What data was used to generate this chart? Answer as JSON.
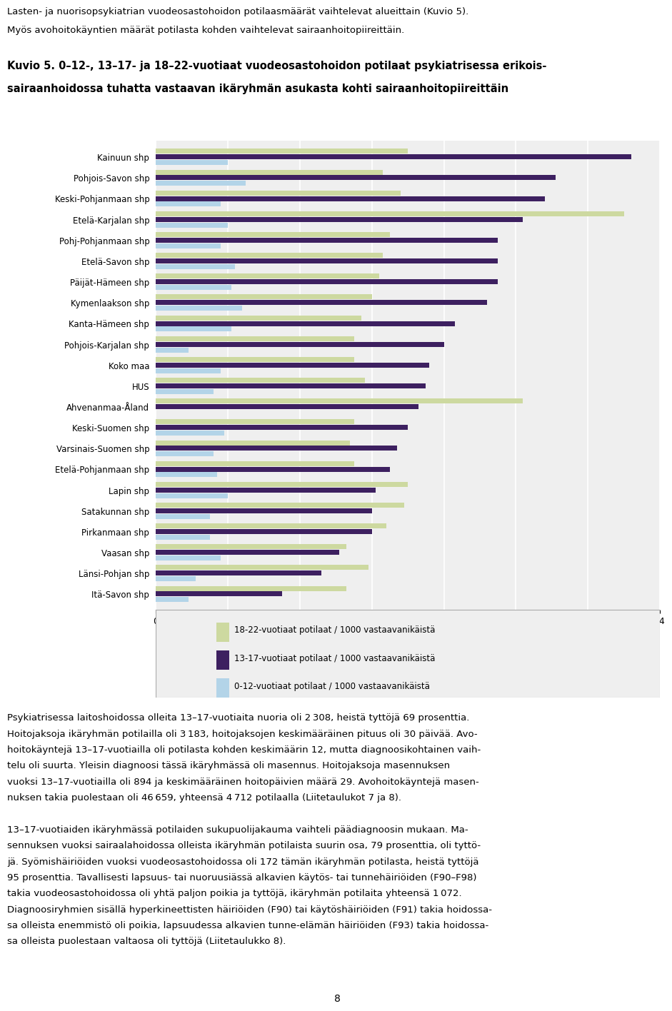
{
  "title": "Kuvio 5. 0–12-, 13–17- ja 18–22-vuotiaat vuodeosastohoidon potilaat psykiatrisessa erikois-\nsairaanhoidossa tuhatta vastaavan ikäryhmän asukasta kohti sairaanhoitopiireittäin",
  "header_line1": "Lasten- ja nuorisopsykiatrian vuodeosastohoidon potilaasmäärät vaihtelevat alueittain (Kuvio 5).",
  "header_line2": "Myös avohoitokäyntien määrät potilasta kohden vaihtelevat sairaanhoitopiireittäin.",
  "categories": [
    "Kainuun shp",
    "Pohjois-Savon shp",
    "Keski-Pohjanmaan shp",
    "Etelä-Karjalan shp",
    "Pohj-Pohjanmaan shp",
    "Etelä-Savon shp",
    "Päijät-Hämeen shp",
    "Kymenlaakson shp",
    "Kanta-Hämeen shp",
    "Pohjois-Karjalan shp",
    "Koko maa",
    "HUS",
    "Ahvenanmaa-Åland",
    "Keski-Suomen shp",
    "Varsinais-Suomen shp",
    "Etelä-Pohjanmaan shp",
    "Lapin shp",
    "Satakunnan shp",
    "Pirkanmaan shp",
    "Vaasan shp",
    "Länsi-Pohjan shp",
    "Itä-Savon shp"
  ],
  "series_18_22": [
    7.0,
    6.3,
    6.8,
    13.0,
    6.5,
    6.3,
    6.2,
    6.0,
    5.7,
    5.5,
    5.5,
    5.8,
    10.2,
    5.5,
    5.4,
    5.5,
    7.0,
    6.9,
    6.4,
    5.3,
    5.9,
    5.3
  ],
  "series_13_17": [
    13.2,
    11.1,
    10.8,
    10.2,
    9.5,
    9.5,
    9.5,
    9.2,
    8.3,
    8.0,
    7.6,
    7.5,
    7.3,
    7.0,
    6.7,
    6.5,
    6.1,
    6.0,
    6.0,
    5.1,
    4.6,
    3.5
  ],
  "series_0_12": [
    2.0,
    2.5,
    1.8,
    2.0,
    1.8,
    2.2,
    2.1,
    2.4,
    2.1,
    0.9,
    1.8,
    1.6,
    0.0,
    1.9,
    1.6,
    1.7,
    2.0,
    1.5,
    1.5,
    1.8,
    1.1,
    0.9
  ],
  "color_18_22": "#cdd9a0",
  "color_13_17": "#3d2060",
  "color_0_12": "#b3d4e8",
  "legend_18_22": "18-22-vuotiaat potilaat / 1000 vastaavanikäistä",
  "legend_13_17": "13-17-vuotiaat potilaat / 1000 vastaavanikäistä",
  "legend_0_12": "0-12-vuotiaat potilaat / 1000 vastaavanikäistä",
  "xlim": [
    0,
    14
  ],
  "xticks": [
    0,
    2,
    4,
    6,
    8,
    10,
    12,
    14
  ],
  "footer_paragraphs": [
    "Psykiatrisessa laitoshoidossa olleita 13–17-vuotiaita nuoria oli 2 308, heistä tyttöjä 69 prosenttia. Hoitojaksoja ikäryhmän potilailla oli 3 183, hoitojaksojen keskimääräinen pituus oli 30 päivää. Avohoitokäyntejä 13–17-vuotiailla oli potilasta kohden keskimäärin 12, mutta diagnoosikohtainen vaihtelu oli suurta. Yleisin diagnoosi tässä ikäryhmässä oli masennus. Hoitojaksoja masennuksen vuoksi 13–17-vuotiailla oli 894 ja keskimääräinen hoitopäivien määrä 29. Avohoitokäyntejä masennuksen takia puolestaan oli 46 659, yhteensä 4 712 potilaalla (Liitetaulukot 7 ja 8).",
    "13–17-vuotiaiden ikäryhmässä potilaiden sukupuolijakauma vaihteli päädiagnoosin mukaan. Masennuksen vuoksi sairaalahoidossa olleista ikäryhmän potilaista suurin osa, 79 prosenttia, oli tyttöjä. Syömishäiriöiden vuoksi vuodeosastohoidossa oli 172 tämän ikäryhmän potilasta, heistä tyttöjä 95 prosenttia. Tavallisesti lapsuus- tai nuoruusiässä alkavien käytös- tai tunnehäiriöiden (F90–F98) takia vuodeosastohoidossa oli yhtä paljon poikia ja tyttöjä, ikäryhmän potilaita yhteensä 1 072. Diagnoosiryhmien sisällä hyperkineettisten häiriöiden (F90) tai käytöshäiriöiden (F91) takia hoidossa- sa olleista enemmistö oli poikia, lapsuudessa alkavien tunne-elämän häiriöiden (F93) takia hoidossa- sa olleista puolestaan valtaosa oli tyttöjä (Liitetaulukko 8)."
  ],
  "footer_lines": [
    "Psykiatrisessa laitoshoidossa olleita 13–17-vuotiaita nuoria oli 2 308, heistä tyttöjä 69 prosenttia.",
    "Hoitojaksoja ikäryhmän potilailla oli 3 183, hoitojaksojen keskimääräinen pituus oli 30 päivää. Avo-",
    "hoitokäyntejä 13–17-vuotiailla oli potilasta kohden keskimäärin 12, mutta diagnoosikohtainen vaih-",
    "telu oli suurta. Yleisin diagnoosi tässä ikäryhmässä oli masennus. Hoitojaksoja masennuksen",
    "vuoksi 13–17-vuotiailla oli 894 ja keskimääräinen hoitopäivien määrä 29. Avohoitokäyntejä masen-",
    "nuksen takia puolestaan oli 46 659, yhteensä 4 712 potilaalla (Liitetaulukot 7 ja 8).",
    "",
    "13–17-vuotiaiden ikäryhmässä potilaiden sukupuolijakauma vaihteli päädiagnoosin mukaan. Ma-",
    "sennuksen vuoksi sairaalahoidossa olleista ikäryhmän potilaista suurin osa, 79 prosenttia, oli tyttö-",
    "jä. Syömishäiriöiden vuoksi vuodeosastohoidossa oli 172 tämän ikäryhmän potilasta, heistä tyttöjä",
    "95 prosenttia. Tavallisesti lapsuus- tai nuoruusiässä alkavien käytös- tai tunnehäiriöiden (F90–F98)",
    "takia vuodeosastohoidossa oli yhtä paljon poikia ja tyttöjä, ikäryhmän potilaita yhteensä 1 072.",
    "Diagnoosiryhmien sisällä hyperkineettisten häiriöiden (F90) tai käytöshäiriöiden (F91) takia hoidossa-",
    "sa olleista enemmistö oli poikia, lapsuudessa alkavien tunne-elämän häiriöiden (F93) takia hoidossa-",
    "sa olleista puolestaan valtaosa oli tyttöjä (Liitetaulukko 8)."
  ],
  "page_number": "8",
  "background_color": "#ffffff",
  "chart_bg": "#efefef"
}
